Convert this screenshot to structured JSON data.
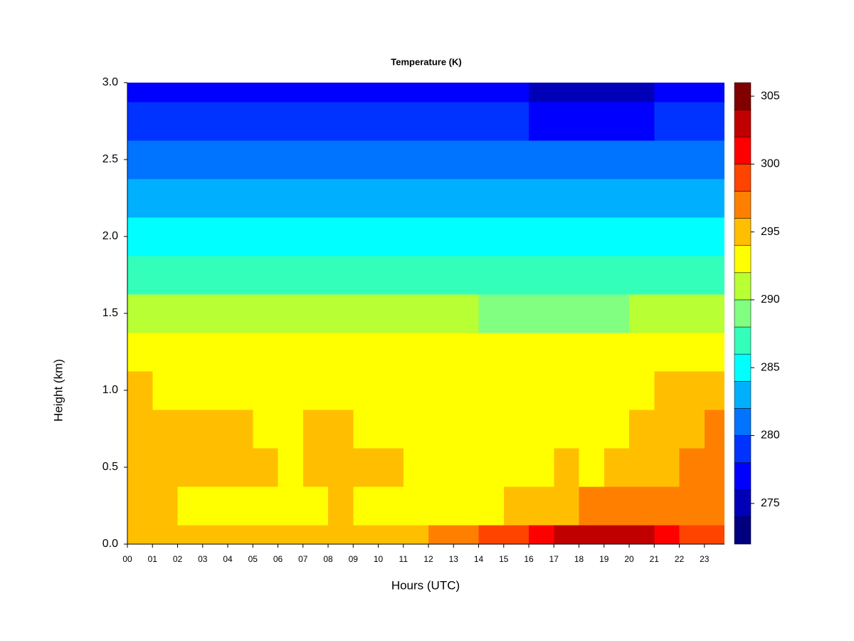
{
  "chart_data": {
    "type": "heatmap",
    "title": "Temperature (K)",
    "x_label": "Hours (UTC)",
    "y_label": "Height (km)",
    "x": [
      0,
      1,
      2,
      3,
      4,
      5,
      6,
      7,
      8,
      9,
      10,
      11,
      12,
      13,
      14,
      15,
      16,
      17,
      18,
      19,
      20,
      21,
      22,
      23
    ],
    "y": [
      0,
      0.25,
      0.5,
      0.75,
      1.0,
      1.25,
      1.5,
      1.75,
      2.0,
      2.25,
      2.5,
      2.75,
      3.0
    ],
    "z": [
      [
        295,
        295,
        295,
        295,
        295,
        295,
        295,
        295,
        295,
        295,
        295,
        295,
        296,
        297,
        298,
        299,
        301,
        302,
        303,
        303,
        302,
        300,
        299,
        299
      ],
      [
        294,
        294,
        293.5,
        293.5,
        293.5,
        293.5,
        293,
        293.5,
        294,
        293.5,
        293,
        293,
        293,
        293,
        293.5,
        294,
        294.5,
        295,
        296,
        297,
        297,
        297,
        297,
        297
      ],
      [
        294.5,
        294.5,
        294.5,
        294.5,
        294.5,
        294,
        293.5,
        294,
        294.5,
        294.5,
        294,
        293,
        293,
        293,
        293,
        293,
        293.5,
        294,
        293.5,
        294,
        295,
        295.5,
        296.5,
        296.5
      ],
      [
        294.5,
        294.5,
        294,
        294,
        294,
        293.5,
        293.5,
        294,
        294,
        293.5,
        293.5,
        293,
        293,
        293,
        293,
        293,
        293,
        293.5,
        293,
        293.5,
        294.5,
        295,
        295.5,
        296
      ],
      [
        294,
        293.5,
        293.5,
        293,
        293,
        293,
        293,
        293,
        293,
        293,
        293,
        293,
        293,
        293,
        293,
        293,
        293,
        293,
        293,
        293,
        293.5,
        294,
        294.5,
        294.5
      ],
      [
        292,
        292,
        292,
        292,
        292,
        292,
        292,
        292,
        292,
        292,
        292,
        292,
        292,
        292,
        292,
        292,
        292,
        292,
        292,
        292,
        292,
        292.5,
        292.5,
        292.5
      ],
      [
        290,
        290,
        290,
        290,
        290,
        290,
        290,
        290,
        290,
        290,
        290,
        290,
        290,
        290,
        289.5,
        289.5,
        289.5,
        289.5,
        289.5,
        289.5,
        290,
        290,
        290,
        290
      ],
      [
        287.5,
        287.5,
        287.5,
        287.5,
        287.5,
        287.5,
        287.5,
        287.5,
        287.5,
        287.5,
        287.5,
        287.5,
        287.5,
        287.5,
        287.5,
        287.5,
        286,
        286,
        286,
        286,
        287.5,
        287.5,
        287.5,
        287.5
      ],
      [
        285,
        285,
        285,
        285,
        285,
        285,
        285,
        285,
        285,
        285,
        285,
        285,
        285,
        285,
        285,
        284,
        284,
        284,
        284,
        284,
        285,
        285,
        285,
        285
      ],
      [
        283,
        283,
        283,
        283,
        283,
        283,
        283,
        283,
        283,
        283,
        283,
        283,
        283,
        283,
        283,
        283,
        282,
        282,
        282,
        282,
        283,
        283,
        283,
        283
      ],
      [
        281,
        281,
        281,
        281,
        281,
        281,
        281,
        281,
        281,
        281,
        281,
        281,
        281,
        281,
        281,
        281,
        280,
        280,
        280,
        280,
        281,
        281,
        281,
        281
      ],
      [
        278.5,
        278.5,
        278.5,
        278.5,
        278.5,
        278.5,
        278.5,
        278.5,
        278.5,
        278.5,
        278.5,
        278.5,
        278.5,
        278.5,
        278.5,
        278.5,
        277,
        277,
        277,
        277,
        277,
        278.5,
        278.5,
        278.5
      ],
      [
        276.5,
        276.5,
        276.5,
        276.5,
        276.5,
        276.5,
        276.5,
        276.5,
        276.5,
        276.5,
        276.5,
        276.5,
        276.5,
        276.5,
        276.5,
        276.5,
        275,
        275,
        275,
        275,
        275,
        276.5,
        276.5,
        276.5
      ]
    ],
    "xlim": [
      0,
      23.8
    ],
    "ylim": [
      0,
      3
    ],
    "xticks": [
      {
        "value": 0,
        "label": "00"
      },
      {
        "value": 1,
        "label": "01"
      },
      {
        "value": 2,
        "label": "02"
      },
      {
        "value": 3,
        "label": "03"
      },
      {
        "value": 4,
        "label": "04"
      },
      {
        "value": 5,
        "label": "05"
      },
      {
        "value": 6,
        "label": "06"
      },
      {
        "value": 7,
        "label": "07"
      },
      {
        "value": 8,
        "label": "08"
      },
      {
        "value": 9,
        "label": "09"
      },
      10,
      11,
      12,
      13,
      14,
      15,
      16,
      17,
      18,
      19,
      20,
      21,
      22,
      23
    ],
    "yticks": [
      {
        "value": 0,
        "label": "0.0"
      },
      {
        "value": 0.5,
        "label": "0.5"
      },
      {
        "value": 1,
        "label": "1.0"
      },
      {
        "value": 1.5,
        "label": "1.5"
      },
      {
        "value": 2,
        "label": "2.0"
      },
      {
        "value": 2.5,
        "label": "2.5"
      },
      {
        "value": 3,
        "label": "3.0"
      }
    ],
    "levels": [
      272,
      274,
      276,
      278,
      280,
      282,
      284,
      286,
      288,
      290,
      292,
      294,
      296,
      298,
      300,
      302,
      304,
      306
    ],
    "colors": [
      "#00007f",
      "#0000b8",
      "#0000ff",
      "#0033ff",
      "#0073ff",
      "#00b0ff",
      "#00ffff",
      "#33ffbb",
      "#80ff80",
      "#b8ff33",
      "#ffff00",
      "#ffbf00",
      "#ff8000",
      "#ff4400",
      "#ff0000",
      "#c00000",
      "#800000"
    ],
    "colorbar_ticks": [
      275,
      280,
      285,
      290,
      295,
      300,
      305
    ]
  }
}
